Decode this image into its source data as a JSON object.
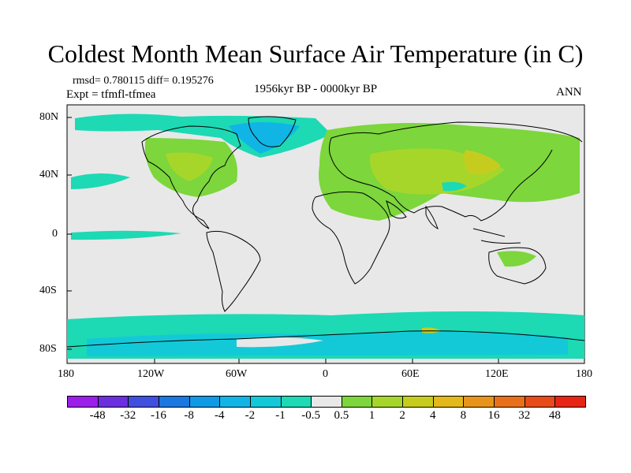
{
  "title": "Coldest Month Mean Surface Air Temperature (in C)",
  "stats": "rmsd= 0.780115 diff= 0.195276",
  "experiment": "Expt = tfmfl-tfmea",
  "period": "1956kyr BP - 0000kyr BP",
  "season": "ANN",
  "lat_ticks": [
    "80N",
    "40N",
    "0",
    "40S",
    "80S"
  ],
  "lon_ticks": [
    "180",
    "120W",
    "60W",
    "0",
    "60E",
    "120E",
    "180"
  ],
  "colorbar": {
    "labels": [
      "-48",
      "-32",
      "-16",
      "-8",
      "-4",
      "-2",
      "-1",
      "-0.5",
      "0.5",
      "1",
      "2",
      "4",
      "8",
      "16",
      "32",
      "48"
    ],
    "colors": [
      "#9b1fe8",
      "#6b2fe0",
      "#3f4fe0",
      "#1b78e0",
      "#0f9ae6",
      "#10b5e6",
      "#13c9d8",
      "#1dd9b4",
      "#e8e8e8",
      "#7cd63c",
      "#a7d62a",
      "#c6cc1e",
      "#e3b81a",
      "#e8941a",
      "#e8701a",
      "#e84a1a",
      "#e82414"
    ]
  },
  "map_colors": {
    "background": "#e8e8e8",
    "cool_light": "#1dd9b4",
    "cool_mid": "#13c9d8",
    "cool_strong": "#10b5e6",
    "warm_light": "#7cd63c",
    "warm_mid": "#a7d62a",
    "warm_strong": "#c6cc1e",
    "coast": "#000000"
  }
}
